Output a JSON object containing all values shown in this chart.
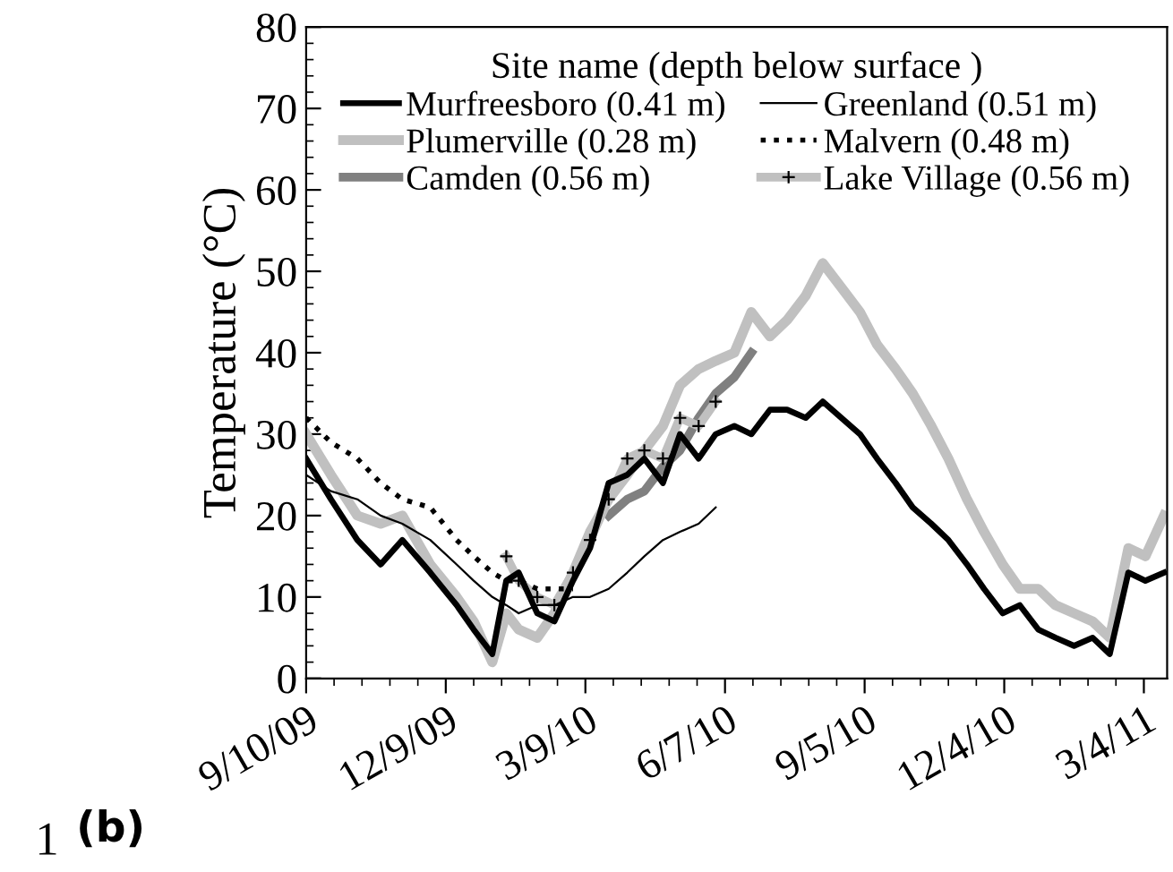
{
  "chart_data": {
    "type": "line",
    "ylabel": "Temperature (°C)",
    "legend_title": "Site name (depth below surface )",
    "legend": "top",
    "grid": false,
    "annotations": [
      "1",
      "(b)"
    ],
    "xlim": [
      "2009-09-10",
      "2011-03-19"
    ],
    "xticks": [
      {
        "value": "2009-09-10",
        "label": "9/10/09"
      },
      {
        "value": "2009-12-09",
        "label": "12/9/09"
      },
      {
        "value": "2010-03-09",
        "label": "3/9/10"
      },
      {
        "value": "2010-06-07",
        "label": "6/7/10"
      },
      {
        "value": "2010-09-05",
        "label": "9/5/10"
      },
      {
        "value": "2010-12-04",
        "label": "12/4/10"
      },
      {
        "value": "2011-03-04",
        "label": "3/4/11"
      }
    ],
    "ylim": [
      0,
      80
    ],
    "yticks": [
      0,
      10,
      20,
      30,
      40,
      50,
      60,
      70,
      80
    ],
    "series": [
      {
        "name": "Murfreesboro (0.41 m)",
        "color": "#000000",
        "line_style": "solid",
        "marker": "none",
        "x": [
          "2009-09-10",
          "2009-09-26",
          "2009-10-13",
          "2009-10-28",
          "2009-11-11",
          "2009-11-29",
          "2009-12-16",
          "2009-12-27",
          "2010-01-08",
          "2010-01-17",
          "2010-01-25",
          "2010-02-06",
          "2010-02-17",
          "2010-03-01",
          "2010-03-12",
          "2010-03-24",
          "2010-04-05",
          "2010-04-16",
          "2010-04-28",
          "2010-05-09",
          "2010-05-21",
          "2010-06-01",
          "2010-06-13",
          "2010-06-24",
          "2010-07-06",
          "2010-07-17",
          "2010-07-29",
          "2010-08-09",
          "2010-08-21",
          "2010-09-02",
          "2010-09-13",
          "2010-09-25",
          "2010-10-06",
          "2010-10-18",
          "2010-10-29",
          "2010-11-10",
          "2010-11-21",
          "2010-12-03",
          "2010-12-14",
          "2010-12-26",
          "2011-01-06",
          "2011-01-18",
          "2011-01-30",
          "2011-02-10",
          "2011-02-22",
          "2011-03-05",
          "2011-03-17"
        ],
        "values": [
          27,
          22,
          17,
          14,
          17,
          13,
          9,
          6,
          3,
          12,
          13,
          8,
          7,
          12,
          16,
          24,
          25,
          27,
          24,
          30,
          27,
          30,
          31,
          30,
          33,
          33,
          32,
          34,
          32,
          30,
          27,
          24,
          21,
          19,
          17,
          14,
          11,
          8,
          9,
          6,
          5,
          4,
          5,
          3,
          13,
          12,
          13
        ]
      },
      {
        "name": "Greenland (0.51 m)",
        "color": "#000000",
        "line_style": "solid",
        "marker": "none",
        "x": [
          "2009-09-10",
          "2009-09-26",
          "2009-10-13",
          "2009-10-28",
          "2009-11-11",
          "2009-11-29",
          "2009-12-16",
          "2009-12-27",
          "2010-01-08",
          "2010-01-17",
          "2010-01-25",
          "2010-02-06",
          "2010-02-17",
          "2010-03-01",
          "2010-03-12",
          "2010-03-24",
          "2010-04-05",
          "2010-04-16",
          "2010-04-28",
          "2010-05-09",
          "2010-05-21",
          "2010-06-01"
        ],
        "values": [
          25,
          23,
          22,
          20,
          19,
          17,
          14,
          12,
          10,
          9,
          8,
          9,
          9,
          10,
          10,
          11,
          13,
          15,
          17,
          18,
          19,
          21
        ]
      },
      {
        "name": "Plumerville (0.28 m)",
        "color": "#c0c0c0",
        "line_style": "solid",
        "marker": "none",
        "x": [
          "2009-09-10",
          "2009-09-26",
          "2009-10-13",
          "2009-10-28",
          "2009-11-11",
          "2009-11-29",
          "2009-12-16",
          "2009-12-27",
          "2010-01-08",
          "2010-01-17",
          "2010-01-25",
          "2010-02-06",
          "2010-02-17",
          "2010-03-01",
          "2010-03-12",
          "2010-03-24",
          "2010-04-05",
          "2010-04-16",
          "2010-04-28",
          "2010-05-09",
          "2010-05-21",
          "2010-06-01",
          "2010-06-13",
          "2010-06-24",
          "2010-07-06",
          "2010-07-17",
          "2010-07-29",
          "2010-08-09",
          "2010-08-21",
          "2010-09-02",
          "2010-09-13",
          "2010-09-25",
          "2010-10-06",
          "2010-10-18",
          "2010-10-29",
          "2010-11-10",
          "2010-11-21",
          "2010-12-03",
          "2010-12-14",
          "2010-12-26",
          "2011-01-06",
          "2011-01-18",
          "2011-01-30",
          "2011-02-10",
          "2011-02-22",
          "2011-03-05",
          "2011-03-17"
        ],
        "values": [
          30,
          25,
          20,
          19,
          20,
          14,
          10,
          7,
          2,
          8,
          6,
          5,
          8,
          13,
          18,
          22,
          25,
          28,
          31,
          36,
          38,
          39,
          40,
          45,
          42,
          44,
          47,
          51,
          48,
          45,
          41,
          38,
          35,
          31,
          27,
          22,
          18,
          14,
          11,
          11,
          9,
          8,
          7,
          5,
          16,
          15,
          20
        ]
      },
      {
        "name": "Malvern (0.48 m)",
        "color": "#000000",
        "line_style": "dotted",
        "marker": "none",
        "x": [
          "2009-09-10",
          "2009-09-26",
          "2009-10-13",
          "2009-10-28",
          "2009-11-11",
          "2009-11-29",
          "2009-12-16",
          "2009-12-27",
          "2010-01-08",
          "2010-01-17",
          "2010-01-25",
          "2010-02-06",
          "2010-02-17",
          "2010-03-01"
        ],
        "values": [
          32,
          29,
          27,
          24,
          22,
          21,
          17,
          15,
          13,
          12,
          12,
          11,
          11,
          11
        ]
      },
      {
        "name": "Camden (0.56 m)",
        "color": "#808080",
        "line_style": "solid",
        "marker": "none",
        "x": [
          "2010-03-24",
          "2010-04-05",
          "2010-04-16",
          "2010-04-28",
          "2010-05-09",
          "2010-05-21",
          "2010-06-01",
          "2010-06-13",
          "2010-06-24"
        ],
        "values": [
          20,
          22,
          23,
          26,
          28,
          32,
          35,
          37,
          40
        ]
      },
      {
        "name": "Lake Village (0.56 m)",
        "color": "#c0c0c0",
        "line_style": "solid",
        "marker": "cross",
        "x": [
          "2010-01-17",
          "2010-01-25",
          "2010-02-06",
          "2010-02-17",
          "2010-03-01",
          "2010-03-12",
          "2010-03-24",
          "2010-04-05",
          "2010-04-16",
          "2010-04-28",
          "2010-05-09",
          "2010-05-21",
          "2010-06-01"
        ],
        "values": [
          15,
          12,
          10,
          9,
          13,
          17,
          22,
          27,
          28,
          27,
          32,
          31,
          34
        ]
      }
    ]
  }
}
